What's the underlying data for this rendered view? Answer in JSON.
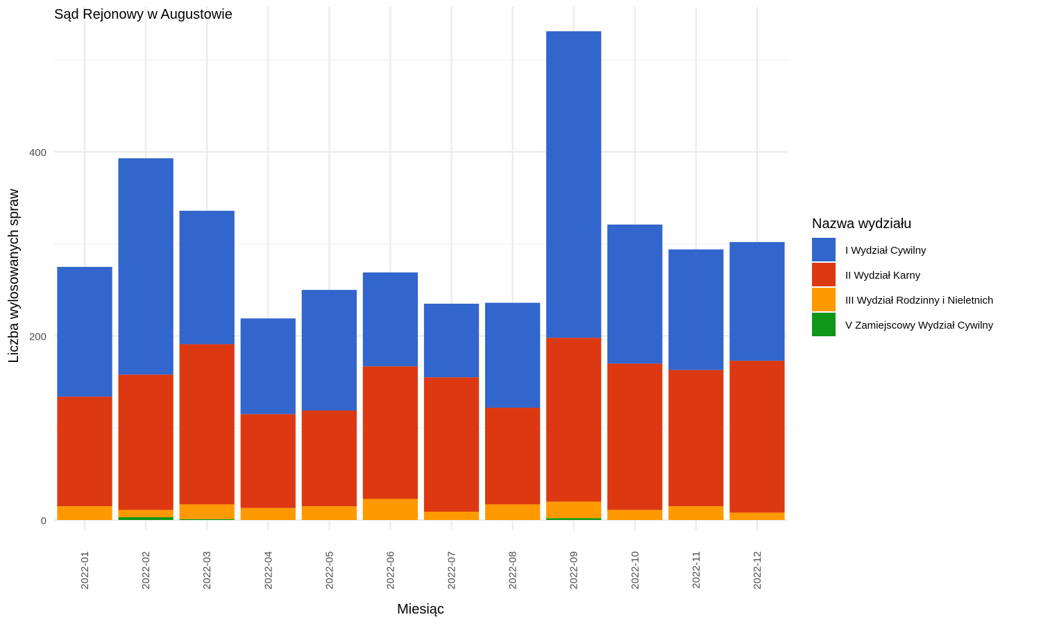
{
  "chart_data": {
    "type": "bar",
    "stacked": true,
    "title": "Sąd Rejonowy w Augustowie",
    "xlabel": "Miesiąc",
    "ylabel": "Liczba wylosowanych spraw",
    "ylim": [
      0,
      550
    ],
    "yticks": [
      "0",
      "200",
      "400"
    ],
    "grid": true,
    "legend_position": "right",
    "legend_title": "Nazwa wydziału",
    "categories": [
      "2022-01",
      "2022-02",
      "2022-03",
      "2022-04",
      "2022-05",
      "2022-06",
      "2022-07",
      "2022-08",
      "2022-09",
      "2022-10",
      "2022-11",
      "2022-12"
    ],
    "series": [
      {
        "name": "V Zamiejscowy Wydział Cywilny",
        "color": "#109618",
        "values": [
          0,
          3,
          1,
          0,
          0,
          0,
          0,
          0,
          2,
          0,
          0,
          0
        ]
      },
      {
        "name": "III Wydział Rodzinny i Nieletnich",
        "color": "#FF9900",
        "values": [
          15,
          8,
          16,
          13,
          15,
          23,
          9,
          17,
          18,
          11,
          15,
          8
        ]
      },
      {
        "name": "II Wydział Karny",
        "color": "#DC3912",
        "values": [
          119,
          147,
          174,
          102,
          104,
          144,
          146,
          105,
          178,
          159,
          148,
          165
        ]
      },
      {
        "name": "I Wydział Cywilny",
        "color": "#3366CC",
        "values": [
          141,
          235,
          145,
          104,
          131,
          102,
          80,
          114,
          333,
          151,
          131,
          129
        ]
      }
    ],
    "legend_order": [
      "I Wydział Cywilny",
      "II Wydział Karny",
      "III Wydział Rodzinny i Nieletnich",
      "V Zamiejscowy Wydział Cywilny"
    ]
  }
}
